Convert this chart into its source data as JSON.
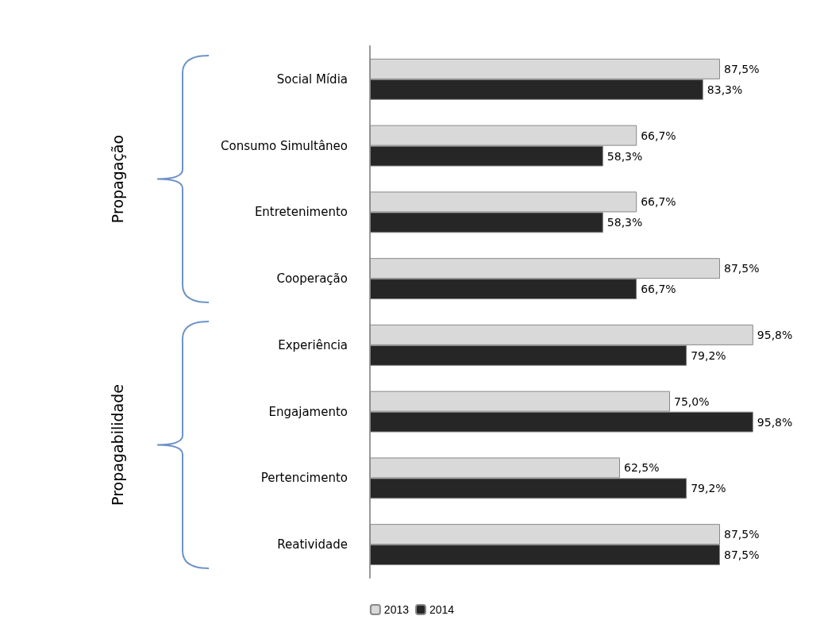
{
  "chart_data": {
    "type": "bar",
    "orientation": "horizontal",
    "categories": [
      "Social Mídia",
      "Consumo Simultâneo",
      "Entretenimento",
      "Cooperação",
      "Experiência",
      "Engajamento",
      "Pertencimento",
      "Reatividade"
    ],
    "series": [
      {
        "name": "2013",
        "color": "#d9d9d9",
        "values": [
          87.5,
          66.7,
          66.7,
          87.5,
          95.8,
          75.0,
          62.5,
          87.5
        ],
        "value_labels": [
          "87,5%",
          "66,7%",
          "66,7%",
          "87,5%",
          "95,8%",
          "75,0%",
          "62,5%",
          "87,5%"
        ]
      },
      {
        "name": "2014",
        "color": "#262626",
        "values": [
          83.3,
          58.3,
          58.3,
          66.7,
          79.2,
          95.8,
          79.2,
          87.5
        ],
        "value_labels": [
          "83,3%",
          "58,3%",
          "58,3%",
          "66,7%",
          "79,2%",
          "95,8%",
          "79,2%",
          "87,5%"
        ]
      }
    ],
    "annotations": [
      "Propagação",
      "Propagabilidade"
    ],
    "legend": "bottom",
    "tick_labels": "y"
  }
}
